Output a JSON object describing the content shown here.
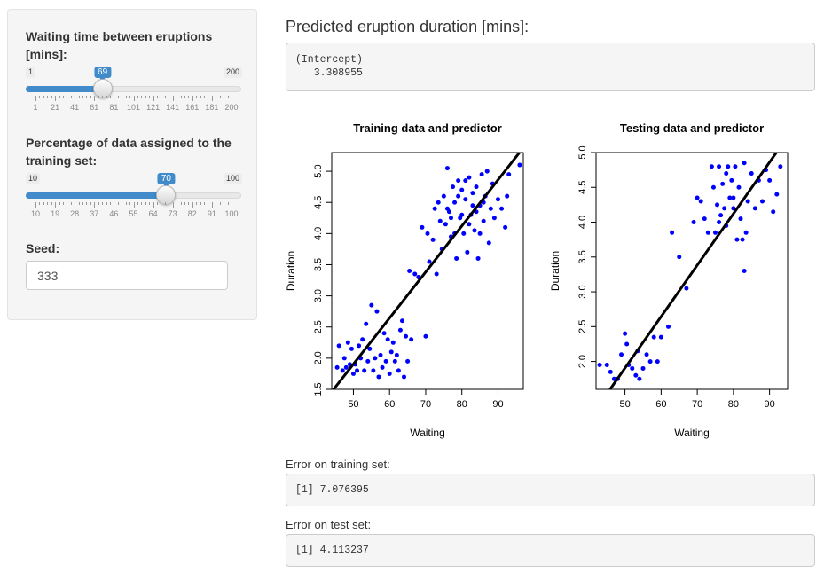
{
  "sidebar": {
    "waiting": {
      "label": "Waiting time between eruptions [mins]:",
      "min": "1",
      "max": "200",
      "value": "69",
      "fraction": 0.342,
      "ticks": [
        "1",
        "21",
        "41",
        "61",
        "81",
        "101",
        "121",
        "141",
        "161",
        "181",
        "200"
      ]
    },
    "percentage": {
      "label": "Percentage of data assigned to the training set:",
      "min": "10",
      "max": "100",
      "value": "70",
      "fraction": 0.667,
      "ticks": [
        "10",
        "19",
        "28",
        "37",
        "46",
        "55",
        "64",
        "73",
        "82",
        "91",
        "100"
      ]
    },
    "seed": {
      "label": "Seed:",
      "value": "333"
    }
  },
  "main": {
    "prediction_heading": "Predicted eruption duration [mins]:",
    "prediction_output": "(Intercept)\n   3.308955",
    "train_error_label": "Error on training set:",
    "train_error_output": "[1] 7.076395",
    "test_error_label": "Error on test set:",
    "test_error_output": "[1] 4.113237"
  },
  "chart_data": [
    {
      "type": "scatter",
      "title": "Training data and predictor",
      "xlabel": "Waiting",
      "ylabel": "Duration",
      "xlim": [
        44,
        97
      ],
      "ylim": [
        1.5,
        5.3
      ],
      "xticks": [
        50,
        60,
        70,
        80,
        90
      ],
      "yticks": [
        1.5,
        2.0,
        2.5,
        3.0,
        3.5,
        4.0,
        4.5,
        5.0
      ],
      "point_color": "#0000ff",
      "fit_line": {
        "intercept": -1.79,
        "slope": 0.0739
      },
      "points": [
        [
          45.5,
          1.85
        ],
        [
          46,
          2.2
        ],
        [
          47,
          1.8
        ],
        [
          47.5,
          2.0
        ],
        [
          48,
          1.85
        ],
        [
          48.5,
          2.25
        ],
        [
          49,
          1.9
        ],
        [
          49.5,
          2.15
        ],
        [
          50,
          1.75
        ],
        [
          50.5,
          1.9
        ],
        [
          51,
          1.8
        ],
        [
          51.5,
          2.2
        ],
        [
          52,
          2.0
        ],
        [
          52.5,
          2.3
        ],
        [
          53,
          1.8
        ],
        [
          53.5,
          2.55
        ],
        [
          54,
          1.95
        ],
        [
          54.5,
          2.15
        ],
        [
          55,
          2.85
        ],
        [
          55.5,
          1.8
        ],
        [
          56,
          2.0
        ],
        [
          56.5,
          2.75
        ],
        [
          57,
          1.7
        ],
        [
          57.5,
          2.05
        ],
        [
          58,
          1.85
        ],
        [
          58.5,
          2.4
        ],
        [
          59,
          1.95
        ],
        [
          59.5,
          2.3
        ],
        [
          60,
          1.75
        ],
        [
          60.5,
          2.1
        ],
        [
          61,
          2.25
        ],
        [
          61.5,
          1.95
        ],
        [
          62,
          2.05
        ],
        [
          62.5,
          1.8
        ],
        [
          63,
          2.45
        ],
        [
          63.5,
          2.6
        ],
        [
          64,
          1.7
        ],
        [
          64.5,
          2.35
        ],
        [
          65,
          1.95
        ],
        [
          65.5,
          3.4
        ],
        [
          66,
          2.3
        ],
        [
          67,
          3.35
        ],
        [
          68,
          3.3
        ],
        [
          69,
          4.1
        ],
        [
          70,
          2.35
        ],
        [
          70.5,
          4.0
        ],
        [
          71,
          3.55
        ],
        [
          72,
          3.9
        ],
        [
          72.5,
          4.4
        ],
        [
          73,
          3.35
        ],
        [
          73.5,
          4.5
        ],
        [
          74,
          4.2
        ],
        [
          74.5,
          3.75
        ],
        [
          75,
          4.6
        ],
        [
          75.5,
          4.15
        ],
        [
          76,
          5.05
        ],
        [
          76.5,
          4.35
        ],
        [
          77,
          3.95
        ],
        [
          77.5,
          4.75
        ],
        [
          78,
          4.5
        ],
        [
          78.5,
          3.6
        ],
        [
          79,
          4.85
        ],
        [
          79.5,
          4.25
        ],
        [
          80,
          4.7
        ],
        [
          80.5,
          4.0
        ],
        [
          81,
          4.55
        ],
        [
          81.5,
          3.7
        ],
        [
          82,
          4.9
        ],
        [
          82.5,
          4.3
        ],
        [
          83,
          4.65
        ],
        [
          83.5,
          4.05
        ],
        [
          84,
          4.75
        ],
        [
          84.5,
          3.6
        ],
        [
          85,
          4.45
        ],
        [
          85.5,
          4.95
        ],
        [
          86,
          4.2
        ],
        [
          86.5,
          4.6
        ],
        [
          87,
          5.0
        ],
        [
          87.5,
          3.85
        ],
        [
          88,
          4.4
        ],
        [
          88.5,
          4.8
        ],
        [
          89,
          4.25
        ],
        [
          90,
          4.55
        ],
        [
          91,
          4.4
        ],
        [
          92,
          4.1
        ],
        [
          92.5,
          4.6
        ],
        [
          93,
          4.95
        ],
        [
          96,
          5.1
        ],
        [
          78,
          4.0
        ],
        [
          80,
          4.3
        ],
        [
          82,
          4.15
        ],
        [
          76,
          4.4
        ],
        [
          84,
          4.35
        ],
        [
          86,
          4.5
        ],
        [
          79,
          4.6
        ],
        [
          81,
          4.85
        ],
        [
          83,
          4.45
        ],
        [
          77,
          4.25
        ],
        [
          85,
          4.0
        ]
      ]
    },
    {
      "type": "scatter",
      "title": "Testing data and predictor",
      "xlabel": "Waiting",
      "ylabel": "Duration",
      "xlim": [
        42,
        95
      ],
      "ylim": [
        1.6,
        5.0
      ],
      "xticks": [
        50,
        60,
        70,
        80,
        90
      ],
      "yticks": [
        2.0,
        2.5,
        3.0,
        3.5,
        4.0,
        4.5,
        5.0
      ],
      "point_color": "#0000ff",
      "fit_line": {
        "intercept": -1.79,
        "slope": 0.0739
      },
      "points": [
        [
          43,
          1.95
        ],
        [
          45,
          1.95
        ],
        [
          46,
          1.85
        ],
        [
          47,
          1.75
        ],
        [
          48,
          1.75
        ],
        [
          49,
          2.1
        ],
        [
          50,
          2.4
        ],
        [
          50.5,
          2.25
        ],
        [
          51,
          1.95
        ],
        [
          52,
          1.9
        ],
        [
          53,
          1.8
        ],
        [
          53.5,
          2.15
        ],
        [
          54,
          1.75
        ],
        [
          55,
          1.9
        ],
        [
          56,
          2.1
        ],
        [
          57,
          2.0
        ],
        [
          58,
          2.35
        ],
        [
          59,
          2.0
        ],
        [
          60,
          2.35
        ],
        [
          62,
          2.5
        ],
        [
          63,
          3.85
        ],
        [
          65,
          3.5
        ],
        [
          67,
          3.05
        ],
        [
          69,
          4.0
        ],
        [
          70,
          4.35
        ],
        [
          71,
          4.3
        ],
        [
          72,
          4.05
        ],
        [
          73,
          3.85
        ],
        [
          74,
          4.8
        ],
        [
          74.5,
          4.5
        ],
        [
          75,
          3.85
        ],
        [
          75.5,
          4.25
        ],
        [
          76,
          4.8
        ],
        [
          76.5,
          4.1
        ],
        [
          77,
          4.55
        ],
        [
          77.5,
          4.2
        ],
        [
          78,
          3.95
        ],
        [
          78.5,
          4.8
        ],
        [
          79,
          4.35
        ],
        [
          79.5,
          4.6
        ],
        [
          80,
          4.2
        ],
        [
          80.5,
          4.8
        ],
        [
          81,
          3.75
        ],
        [
          81.5,
          4.5
        ],
        [
          82,
          4.05
        ],
        [
          82.5,
          3.75
        ],
        [
          83,
          4.85
        ],
        [
          83.5,
          3.85
        ],
        [
          84,
          4.3
        ],
        [
          85,
          4.7
        ],
        [
          86,
          4.2
        ],
        [
          87,
          4.6
        ],
        [
          88,
          4.3
        ],
        [
          89,
          4.75
        ],
        [
          90,
          4.6
        ],
        [
          91,
          4.15
        ],
        [
          92,
          4.4
        ],
        [
          93,
          4.8
        ],
        [
          83,
          3.3
        ],
        [
          76,
          4.0
        ],
        [
          80,
          4.35
        ],
        [
          78,
          4.7
        ]
      ]
    }
  ]
}
